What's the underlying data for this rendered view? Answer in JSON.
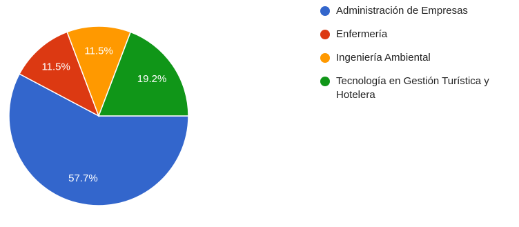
{
  "chart_data": {
    "type": "pie",
    "categories": [
      "Administración de Empresas",
      "Enfermería",
      "Ingeniería Ambiental",
      "Tecnología en Gestión Turística y Hotelera"
    ],
    "values": [
      57.7,
      11.5,
      11.5,
      19.2
    ],
    "value_labels": [
      "57.7%",
      "11.5%",
      "11.5%",
      "19.2%"
    ],
    "colors": [
      "#3366cc",
      "#dc3912",
      "#ff9900",
      "#109618"
    ],
    "legend_position": "right"
  }
}
